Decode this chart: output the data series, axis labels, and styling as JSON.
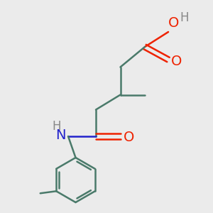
{
  "background_color": "#ebebeb",
  "bond_color": "#4a7a6a",
  "atom_colors": {
    "O": "#ee2200",
    "N": "#2222cc",
    "H_gray": "#888888",
    "C": "#4a7a6a"
  },
  "line_width": 1.8,
  "font_size_atoms": 14,
  "font_size_H": 12,
  "figsize": [
    3.0,
    3.0
  ],
  "dpi": 100
}
